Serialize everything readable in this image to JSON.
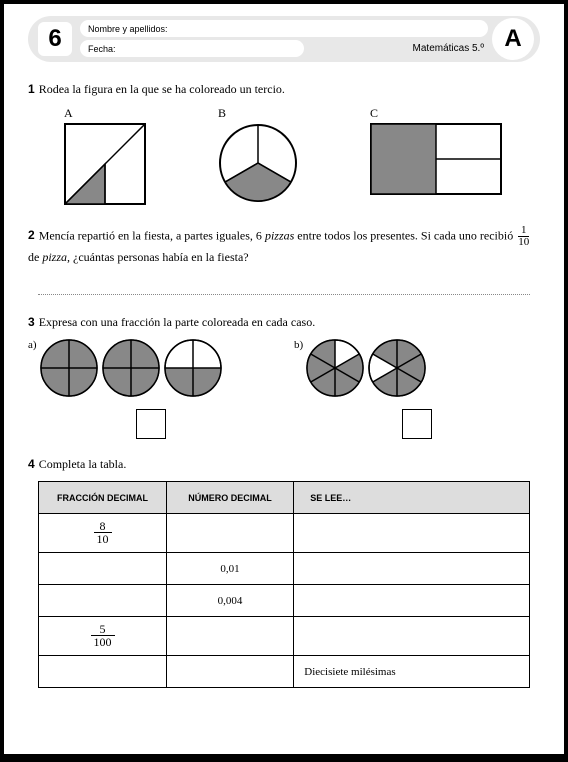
{
  "header": {
    "number": "6",
    "letter": "A",
    "name_label": "Nombre y apellidos:",
    "date_label": "Fecha:",
    "subject": "Matemáticas 5.º"
  },
  "q1": {
    "num": "1",
    "text": "Rodea la figura en la que se ha coloreado un tercio.",
    "labels": {
      "a": "A",
      "b": "B",
      "c": "C"
    },
    "square": {
      "size": 80,
      "stroke": "#000",
      "fill_shaded": "#888",
      "stroke_width": 2
    },
    "circle_b": {
      "size": 78,
      "stroke": "#000",
      "fill_shaded": "#888",
      "stroke_width": 2
    },
    "rect_c": {
      "w": 130,
      "h": 70,
      "stroke": "#000",
      "fill_shaded": "#888",
      "stroke_width": 2
    }
  },
  "q2": {
    "num": "2",
    "text_a": "Mencía repartió en la fiesta, a partes iguales, 6 ",
    "pizzas": "pizzas",
    "text_b": " entre todos los presentes. Si cada uno recibió ",
    "frac_num": "1",
    "frac_den": "10",
    "text_c": " de ",
    "pizza": "pizza,",
    "text_d": " ¿cuántas personas había en la fiesta?"
  },
  "q3": {
    "num": "3",
    "text": "Expresa con una fracción la parte coloreada en cada caso.",
    "label_a": "a)",
    "label_b": "b)",
    "circle_quarters": {
      "size": 58,
      "stroke": "#000",
      "fill": "#888",
      "sw": 1.5,
      "sets": [
        [
          true,
          true,
          true,
          true
        ],
        [
          true,
          true,
          true,
          true
        ],
        [
          false,
          false,
          true,
          true
        ]
      ]
    },
    "circle_sixths": {
      "size": 58,
      "stroke": "#000",
      "fill": "#888",
      "sw": 1.5,
      "sets": [
        [
          false,
          true,
          true,
          true,
          true,
          true
        ],
        [
          true,
          true,
          true,
          true,
          false,
          true
        ]
      ]
    }
  },
  "q4": {
    "num": "4",
    "text": "Completa la tabla.",
    "headers": {
      "frac": "FRACCIÓN DECIMAL",
      "dec": "NÚMERO DECIMAL",
      "read": "SE LEE…"
    },
    "rows": [
      {
        "frac_num": "8",
        "frac_den": "10",
        "dec": "",
        "read": ""
      },
      {
        "frac_num": "",
        "frac_den": "",
        "dec": "0,01",
        "read": ""
      },
      {
        "frac_num": "",
        "frac_den": "",
        "dec": "0,004",
        "read": ""
      },
      {
        "frac_num": "5",
        "frac_den": "100",
        "dec": "",
        "read": ""
      },
      {
        "frac_num": "",
        "frac_den": "",
        "dec": "",
        "read": "Diecisiete milésimas"
      }
    ]
  }
}
